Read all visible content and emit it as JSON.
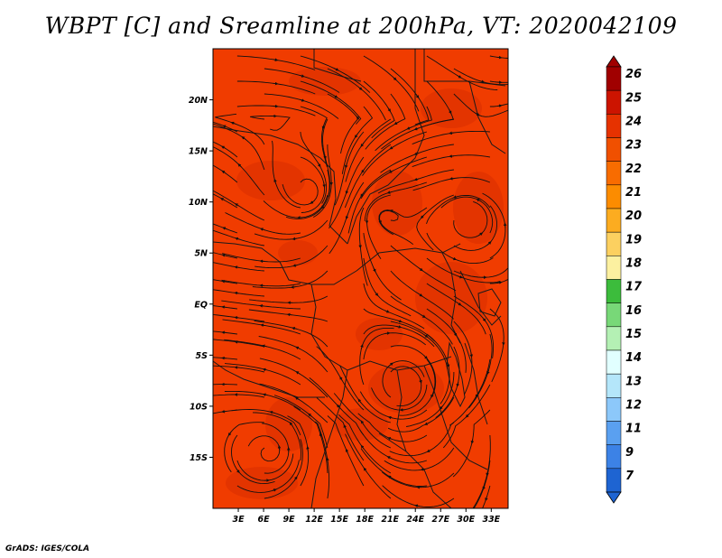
{
  "title": "WBPT [C] and Sreamline at 200hPa, VT: 2020042109",
  "footer": "GrADS: IGES/COLA",
  "map": {
    "lon_range": [
      0,
      35
    ],
    "lat_range": [
      -20,
      25
    ],
    "lat_labels": [
      "20N",
      "15N",
      "10N",
      "5N",
      "EQ",
      "5S",
      "10S",
      "15S"
    ],
    "lat_values": [
      20,
      15,
      10,
      5,
      0,
      -5,
      -10,
      -15
    ],
    "lon_labels": [
      "3E",
      "6E",
      "9E",
      "12E",
      "15E",
      "18E",
      "21E",
      "24E",
      "27E",
      "30E",
      "33E"
    ],
    "lon_values": [
      3,
      6,
      9,
      12,
      15,
      18,
      21,
      24,
      27,
      30,
      33
    ],
    "field_color": "#f03c00",
    "field_dark_color": "#d92e00",
    "contour_color": "#111111"
  },
  "colorbar": {
    "labels": [
      "26",
      "25",
      "24",
      "23",
      "22",
      "21",
      "20",
      "19",
      "18",
      "17",
      "16",
      "15",
      "14",
      "13",
      "12",
      "11",
      "9",
      "7"
    ],
    "colors": [
      "#a00000",
      "#cc1400",
      "#e63200",
      "#f05000",
      "#f86c00",
      "#fc8c00",
      "#fcac20",
      "#fcd060",
      "#fcf0a0",
      "#3cbc3c",
      "#78d878",
      "#b4f0b4",
      "#e1ffff",
      "#b4e6fa",
      "#8cc8fa",
      "#5aa0f0",
      "#3c82e6",
      "#1e64d2"
    ]
  }
}
